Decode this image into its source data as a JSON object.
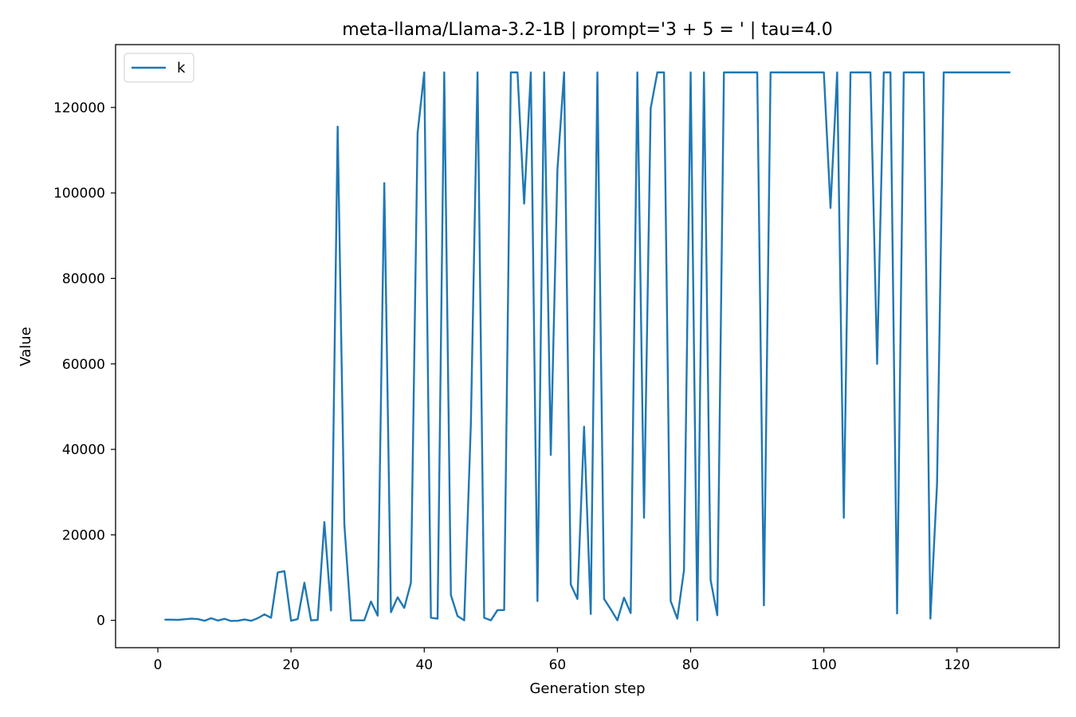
{
  "chart_data": {
    "type": "line",
    "title": "meta-llama/Llama-3.2-1B | prompt='3 + 5 = ' | tau=4.0",
    "xlabel": "Generation step",
    "ylabel": "Value",
    "xlim": [
      -6.35,
      135.35
    ],
    "ylim": [
      -6400,
      134700
    ],
    "xticks": [
      0,
      20,
      40,
      60,
      80,
      100,
      120
    ],
    "yticks": [
      0,
      20000,
      40000,
      60000,
      80000,
      100000,
      120000
    ],
    "grid": false,
    "legend_position": "upper-left",
    "series": [
      {
        "name": "k",
        "color": "#1f77b4",
        "x": [
          1,
          2,
          3,
          4,
          5,
          6,
          7,
          8,
          9,
          10,
          11,
          12,
          13,
          14,
          15,
          16,
          17,
          18,
          19,
          20,
          21,
          22,
          23,
          24,
          25,
          26,
          27,
          28,
          29,
          30,
          31,
          32,
          33,
          34,
          35,
          36,
          37,
          38,
          39,
          40,
          41,
          42,
          43,
          44,
          45,
          46,
          47,
          48,
          49,
          50,
          51,
          52,
          53,
          54,
          55,
          56,
          57,
          58,
          59,
          60,
          61,
          62,
          63,
          64,
          65,
          66,
          67,
          68,
          69,
          70,
          71,
          72,
          73,
          74,
          75,
          76,
          77,
          78,
          79,
          80,
          81,
          82,
          83,
          84,
          85,
          86,
          87,
          88,
          89,
          90,
          91,
          92,
          93,
          94,
          95,
          96,
          97,
          98,
          99,
          100,
          101,
          102,
          103,
          104,
          105,
          106,
          107,
          108,
          109,
          110,
          111,
          112,
          113,
          114,
          115,
          116,
          117,
          118,
          119,
          120,
          121,
          122,
          123,
          124,
          125,
          126,
          127,
          128
        ],
        "values": [
          150,
          150,
          100,
          250,
          400,
          300,
          -100,
          500,
          -50,
          350,
          -150,
          -100,
          200,
          -100,
          500,
          1400,
          600,
          11200,
          11500,
          -100,
          300,
          8800,
          0,
          100,
          23000,
          2300,
          115500,
          22500,
          0,
          0,
          0,
          4400,
          1100,
          102300,
          1900,
          5400,
          2900,
          8800,
          114000,
          128200,
          600,
          400,
          128200,
          5900,
          1000,
          0,
          46000,
          128200,
          600,
          0,
          2400,
          2400,
          128200,
          128200,
          97500,
          128200,
          4500,
          128200,
          38700,
          105500,
          128200,
          8400,
          5000,
          45300,
          1500,
          128200,
          5000,
          2600,
          0,
          5300,
          1700,
          128200,
          24000,
          119800,
          128200,
          128200,
          4500,
          400,
          11700,
          128200,
          0,
          128200,
          9400,
          1200,
          128200,
          128200,
          128200,
          128200,
          128200,
          128200,
          3500,
          128200,
          128200,
          128200,
          128200,
          128200,
          128200,
          128200,
          128200,
          128200,
          96500,
          128200,
          24000,
          128200,
          128200,
          128200,
          128200,
          60000,
          128200,
          128200,
          1600,
          128200,
          128200,
          128200,
          128200,
          400,
          32000,
          128200,
          128200,
          128200,
          128200,
          128200,
          128200,
          128200,
          128200,
          128200,
          128200,
          128200
        ]
      }
    ]
  }
}
